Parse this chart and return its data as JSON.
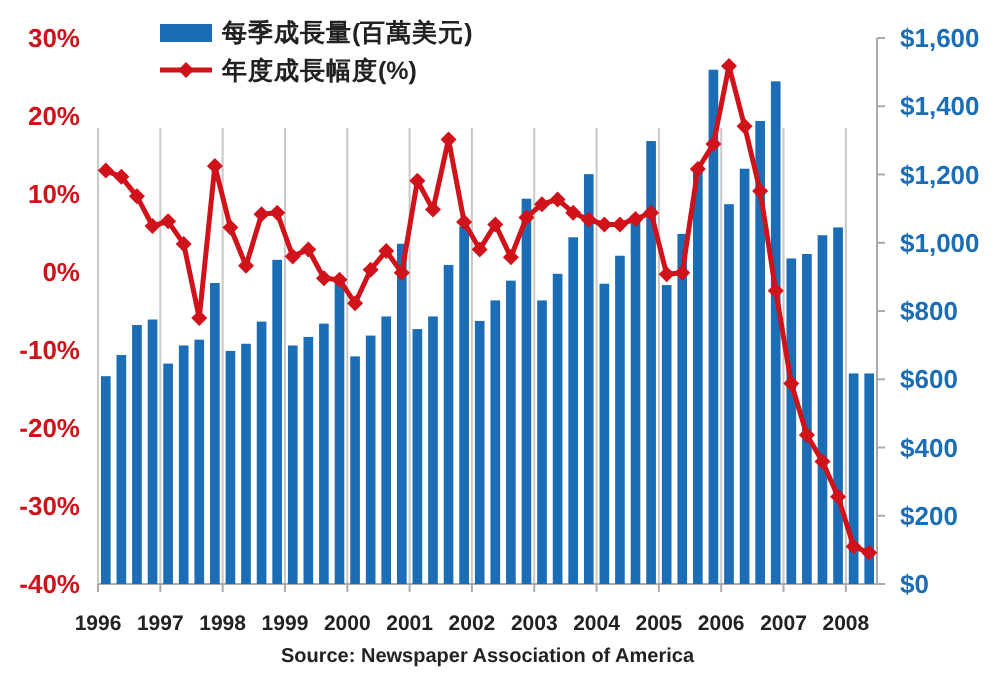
{
  "chart_data": {
    "type": "bar",
    "x": [
      1996.125,
      1996.375,
      1996.625,
      1996.875,
      1997.125,
      1997.375,
      1997.625,
      1997.875,
      1998.125,
      1998.375,
      1998.625,
      1998.875,
      1999.125,
      1999.375,
      1999.625,
      1999.875,
      2000.125,
      2000.375,
      2000.625,
      2000.875,
      2001.125,
      2001.375,
      2001.625,
      2001.875,
      2002.125,
      2002.375,
      2002.625,
      2002.875,
      2003.125,
      2003.375,
      2003.625,
      2003.875,
      2004.125,
      2004.375,
      2004.625,
      2004.875,
      2005.125,
      2005.375,
      2005.625,
      2005.875,
      2006.125,
      2006.375,
      2006.625,
      2006.875,
      2007.125,
      2007.375,
      2007.625,
      2007.875,
      2008.125,
      2008.375
    ],
    "series": [
      {
        "name": "每季成長量(百萬美元)",
        "axis": "y2",
        "color": "#1b6db5",
        "values": [
          609,
          671,
          759,
          775,
          646,
          699,
          716,
          882,
          683,
          704,
          769,
          950,
          699,
          724,
          763,
          886,
          667,
          728,
          784,
          997,
          747,
          784,
          935,
          1048,
          771,
          831,
          889,
          1129,
          831,
          909,
          1016,
          1201,
          880,
          962,
          1074,
          1298,
          876,
          1026,
          1220,
          1507,
          1113,
          1217,
          1357,
          1473,
          954,
          967,
          1022,
          1045,
          617,
          617
        ]
      },
      {
        "name": "年度成長幅度(%)",
        "type": "line",
        "axis": "y",
        "color": "#d0121b",
        "marker": "diamond",
        "values": [
          13.0,
          12.2,
          9.7,
          5.9,
          6.5,
          3.6,
          -5.9,
          13.6,
          5.7,
          0.8,
          7.4,
          7.6,
          2.0,
          2.9,
          -0.8,
          -1.0,
          -4.0,
          0.3,
          2.7,
          -0.1,
          11.7,
          8.0,
          17.0,
          6.4,
          2.9,
          6.1,
          1.9,
          7.0,
          8.7,
          9.3,
          7.6,
          6.7,
          6.1,
          6.1,
          6.8,
          7.6,
          -0.3,
          -0.1,
          13.2,
          16.4,
          26.4,
          18.7,
          10.4,
          -2.4,
          -14.3,
          -20.9,
          -24.3,
          -28.8,
          -35.2,
          -36.0
        ]
      }
    ],
    "xlim": [
      1996,
      2008.5
    ],
    "xticks": [
      1996,
      1997,
      1998,
      1999,
      2000,
      2001,
      2002,
      2003,
      2004,
      2005,
      2006,
      2007,
      2008
    ],
    "ylim": [
      -40,
      30
    ],
    "yticks": [
      {
        "value": -40,
        "label": "-40%"
      },
      {
        "value": -30,
        "label": "-30%"
      },
      {
        "value": -20,
        "label": "-20%"
      },
      {
        "value": -10,
        "label": "-10%"
      },
      {
        "value": 0,
        "label": "0%"
      },
      {
        "value": 10,
        "label": "10%"
      },
      {
        "value": 20,
        "label": "20%"
      },
      {
        "value": 30,
        "label": "30%"
      }
    ],
    "y2lim": [
      0,
      1600
    ],
    "y2ticks": [
      {
        "value": 0,
        "label": "$0"
      },
      {
        "value": 200,
        "label": "$200"
      },
      {
        "value": 400,
        "label": "$400"
      },
      {
        "value": 600,
        "label": "$600"
      },
      {
        "value": 800,
        "label": "$800"
      },
      {
        "value": 1000,
        "label": "$1,000"
      },
      {
        "value": 1200,
        "label": "$1,200"
      },
      {
        "value": 1400,
        "label": "$1,400"
      },
      {
        "value": 1600,
        "label": "$1,600"
      }
    ],
    "grid": "x",
    "legend": "top left",
    "annotations": [
      "Source: Newspaper Association of America"
    ]
  }
}
